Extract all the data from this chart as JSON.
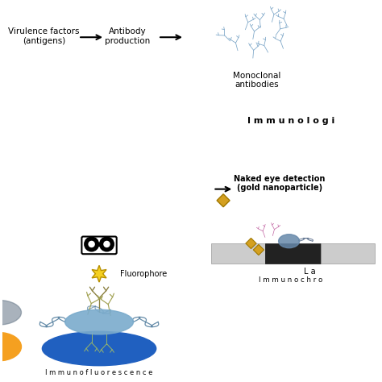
{
  "bg_color": "#ffffff",
  "top_text1": "Virulence factors\n(antigens)",
  "top_text2": "Antibody\nproduction",
  "top_text3": "Monoclonal\nantibodies",
  "immunologi_text": "I m m u n o l o g i",
  "fluorophore_label": "Fluorophore",
  "immunofluorescence_label": "I m m u n o f l u o r e s c e n c e",
  "naked_eye_label": "Naked eye detection\n(gold nanoparticle)",
  "lateral_label": "L a",
  "immunochro_label": "I m m u n o c h r o",
  "antibody_color": "#7fa8c9",
  "fluorophore_color": "#f5d020",
  "antibody_golden_dark": "#8b8040",
  "antibody_golden_light": "#a0a050",
  "antibody_green": "#90b070",
  "plate_color": "#2060c0",
  "orange_blob_color": "#f5a020",
  "lateral_light": "#cccccc",
  "lateral_dark": "#222222",
  "gold_color": "#d4a020",
  "pink_color": "#c060a0",
  "binocular_color": "#111111",
  "bacteria_color": "#7aabcc",
  "bacteria_flagella": "#5580a0",
  "left_bact_color": "#708090"
}
